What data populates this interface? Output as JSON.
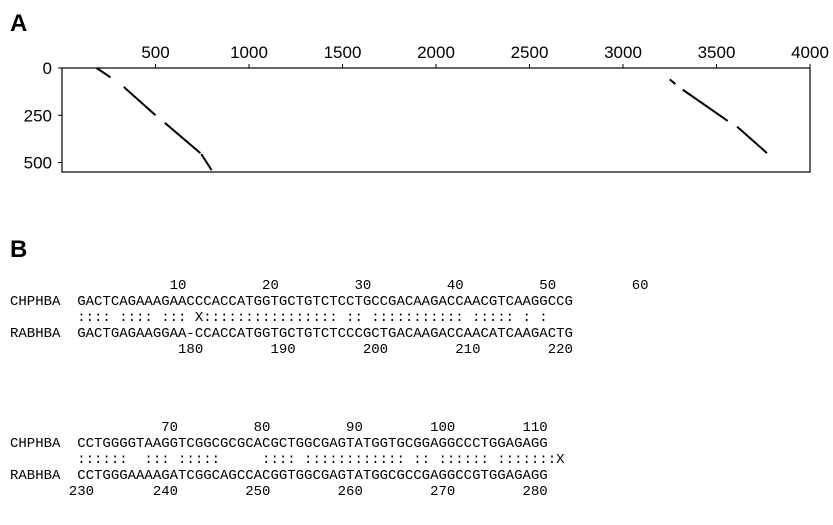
{
  "panel_a_label": "A",
  "panel_b_label": "B",
  "chart_data": {
    "type": "scatter",
    "x_ticks": [
      500,
      1000,
      1500,
      2000,
      2500,
      3000,
      3500,
      4000
    ],
    "y_ticks": [
      0,
      250,
      500
    ],
    "xlim": [
      0,
      4000
    ],
    "ylim": [
      0,
      550
    ],
    "x_axis_position": "top",
    "y_inverted": true,
    "grid": false,
    "series": [
      {
        "segments": [
          [
            [
              185,
              0
            ],
            [
              260,
              50
            ]
          ],
          [
            [
              330,
              100
            ],
            [
              500,
              250
            ]
          ],
          [
            [
              550,
              290
            ],
            [
              740,
              450
            ]
          ],
          [
            [
              745,
              455
            ],
            [
              800,
              540
            ]
          ]
        ]
      },
      {
        "segments": [
          [
            [
              3250,
              60
            ],
            [
              3280,
              85
            ]
          ],
          [
            [
              3320,
              115
            ],
            [
              3560,
              280
            ]
          ],
          [
            [
              3610,
              310
            ],
            [
              3770,
              450
            ]
          ]
        ]
      }
    ]
  },
  "alignment": {
    "block1": {
      "top_numbers": "                   10         20         30         40         50         60",
      "top_seq": "CHPHBA  GACTCAGAAAGAACCCACCATGGTGCTGTCTCCTGCCGACAAGACCAACGTCAAGGCCG",
      "match": "        :::: :::: ::: X:::::::::::::::: :: ::::::::::: ::::: : :",
      "bottom_seq": "RABHBA  GACTGAGAAGGAA-CCACCATGGTGCTGTCTCCCGCTGACAAGACCAACATCAAGACTG",
      "bottom_numbers": "                    180        190        200        210        220"
    },
    "block2": {
      "top_numbers": "                  70         80         90        100        110",
      "top_seq": "CHPHBA  CCTGGGGTAAGGTCGGCGCGCACGCTGGCGAGTATGGTGCGGAGGCCCTGGAGAGG",
      "match": "        ::::::  ::: :::::     :::: :::::::::::: :: :::::: :::::::X",
      "bottom_seq": "RABHBA  CCTGGGAAAAGATCGGCAGCCACGGTGGCGAGTATGGCGCCGAGGCCGTGGAGAGG",
      "bottom_numbers": "       230       240        250        260        270        280"
    }
  }
}
